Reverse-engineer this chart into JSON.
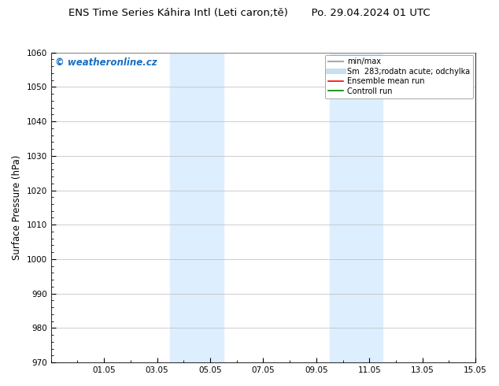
{
  "title": "ENS Time Series Káhira Intl (Leti caron;tě)       Po. 29.04.2024 01 UTC",
  "ylabel": "Surface Pressure (hPa)",
  "ylim": [
    970,
    1060
  ],
  "yticks": [
    970,
    980,
    990,
    1000,
    1010,
    1020,
    1030,
    1040,
    1050,
    1060
  ],
  "xtick_labels": [
    "01.05",
    "03.05",
    "05.05",
    "07.05",
    "09.05",
    "11.05",
    "13.05",
    "15.05"
  ],
  "xtick_positions": [
    2,
    4,
    6,
    8,
    10,
    12,
    14,
    16
  ],
  "xlim": [
    0,
    16
  ],
  "shaded_bands": [
    {
      "x_start": 4.5,
      "x_end": 5.5,
      "color": "#ddeeff"
    },
    {
      "x_start": 5.5,
      "x_end": 6.5,
      "color": "#ddeeff"
    },
    {
      "x_start": 10.5,
      "x_end": 11.5,
      "color": "#ddeeff"
    },
    {
      "x_start": 11.5,
      "x_end": 12.5,
      "color": "#ddeeff"
    }
  ],
  "watermark_text": "© weatheronline.cz",
  "watermark_color": "#1a6fc4",
  "legend_items": [
    {
      "label": "min/max",
      "color": "#aaaaaa",
      "lw": 1.5
    },
    {
      "label": "Sm  283;rodatn acute; odchylka",
      "color": "#c8dff0",
      "lw": 5
    },
    {
      "label": "Ensemble mean run",
      "color": "red",
      "lw": 1.2
    },
    {
      "label": "Controll run",
      "color": "green",
      "lw": 1.2
    }
  ],
  "bg_color": "#ffffff",
  "grid_color": "#bbbbbb",
  "figsize": [
    6.34,
    4.9
  ],
  "dpi": 100
}
